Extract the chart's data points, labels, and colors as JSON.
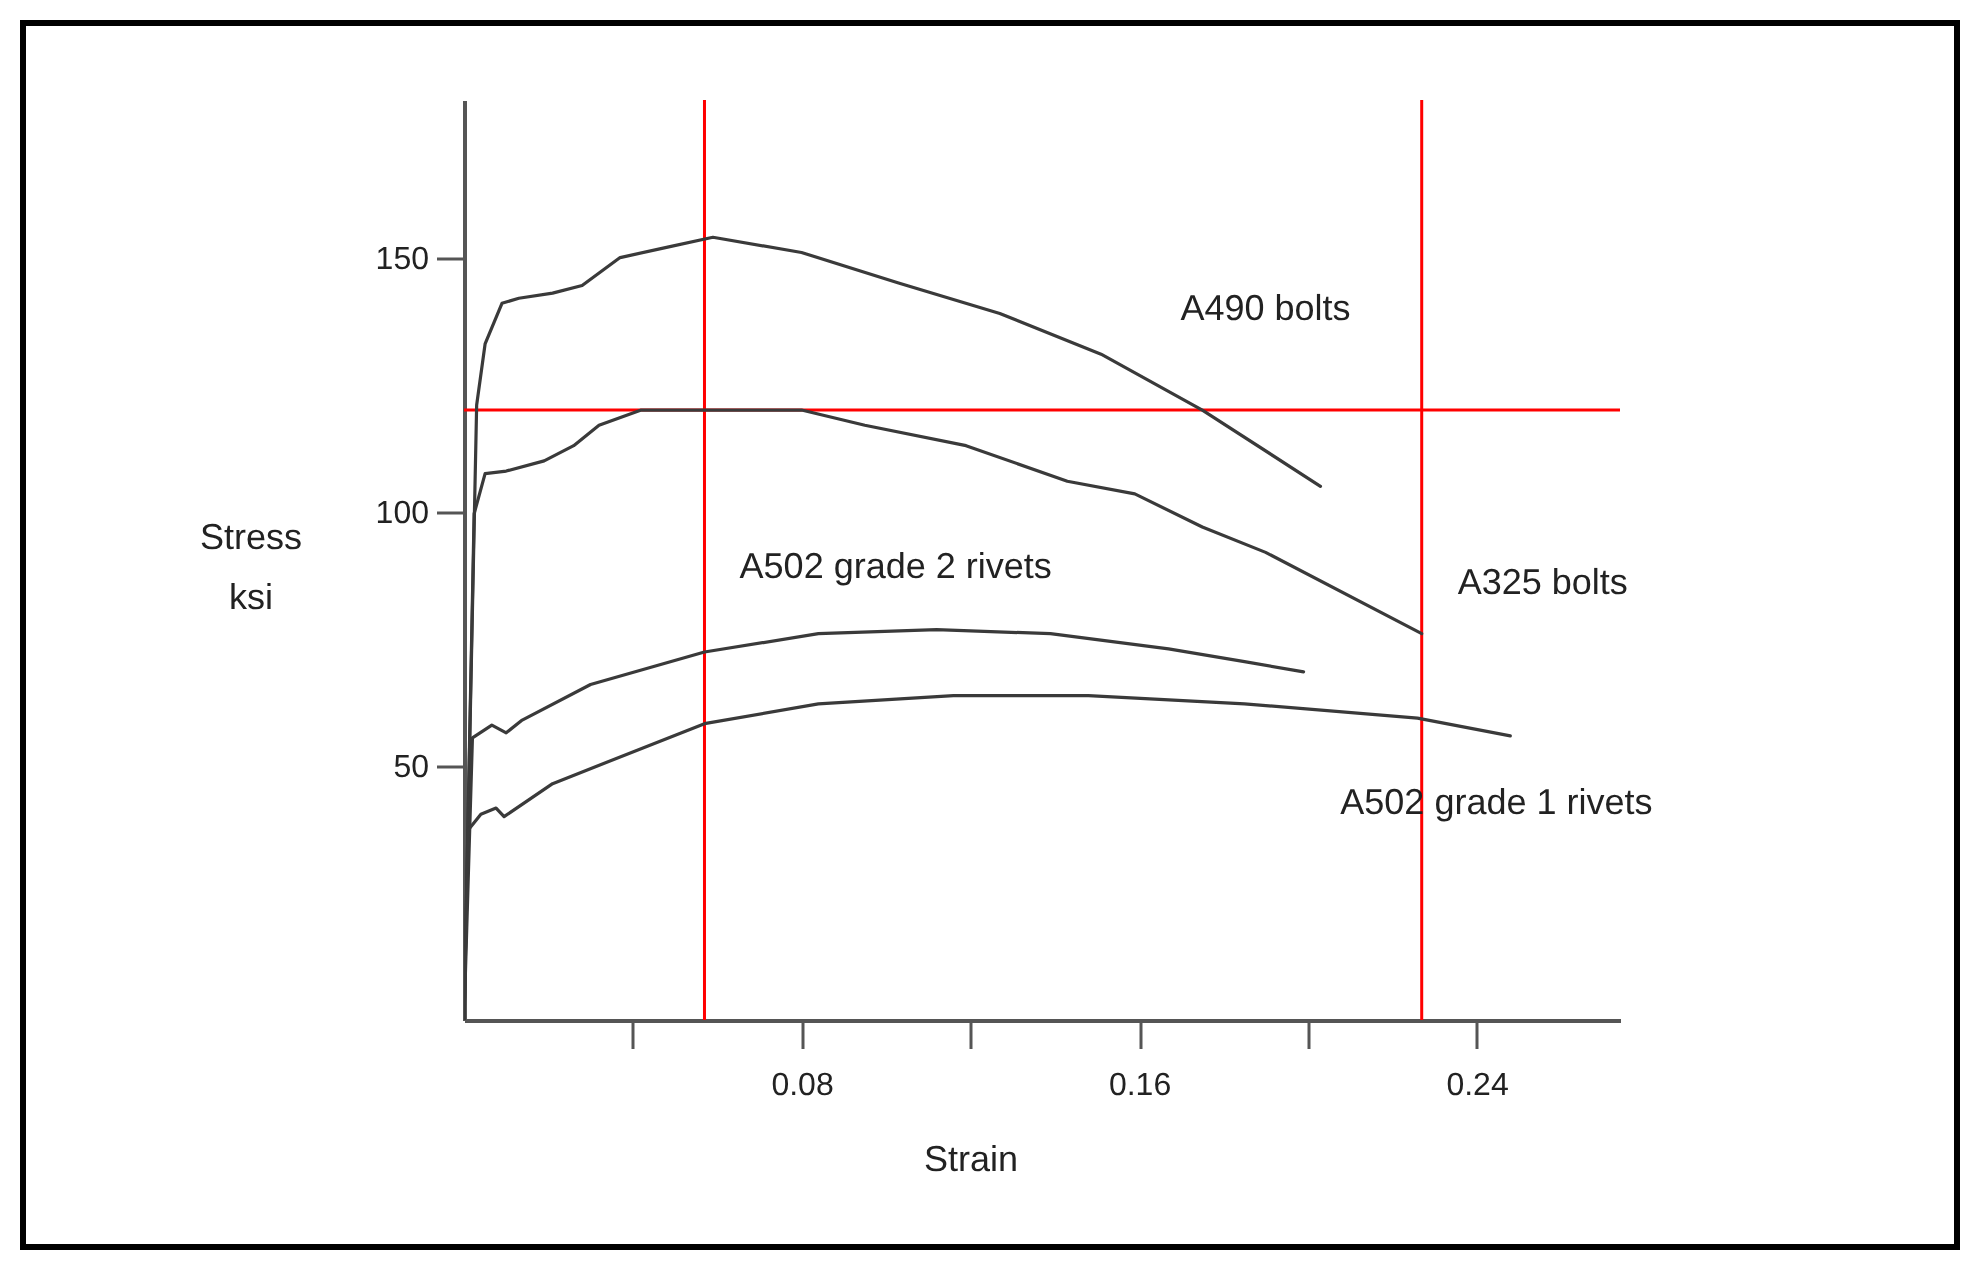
{
  "chart_data": {
    "type": "line",
    "xlabel": "Strain",
    "ylabel": "Stress\nksi",
    "xlim": [
      0,
      0.274
    ],
    "ylim": [
      0,
      181
    ],
    "xticks": [
      {
        "value": 0.04,
        "label": null
      },
      0.08,
      {
        "value": 0.12,
        "label": null
      },
      0.16,
      {
        "value": 0.2,
        "label": null
      },
      0.24
    ],
    "yticks": [
      50,
      100,
      150
    ],
    "grid": false,
    "marker": "none",
    "line_style": "solid",
    "series": [
      {
        "name": "A490 bolts",
        "color": "#3a3a3a",
        "x": [
          0,
          0.003,
          0.005,
          0.009,
          0.013,
          0.021,
          0.028,
          0.037,
          0.048,
          0.059,
          0.08,
          0.103,
          0.127,
          0.151,
          0.175,
          0.203
        ],
        "values": [
          0,
          121,
          133,
          141,
          142,
          143,
          144.5,
          150,
          152,
          154,
          151,
          145,
          139,
          131,
          120,
          105
        ]
      },
      {
        "name": "A325 bolts",
        "color": "#3a3a3a",
        "x": [
          0,
          0.0024,
          0.005,
          0.01,
          0.019,
          0.026,
          0.032,
          0.042,
          0.056,
          0.08,
          0.095,
          0.119,
          0.143,
          0.159,
          0.175,
          0.19,
          0.227
        ],
        "values": [
          0,
          99.6,
          107.5,
          108,
          110,
          113,
          117,
          120,
          120,
          120,
          117,
          113,
          106,
          103.5,
          97,
          92,
          76
        ]
      },
      {
        "name": "A502 grade 2 rivets",
        "color": "#3a3a3a",
        "x": [
          0,
          0.002,
          0.0066,
          0.01,
          0.0138,
          0.03,
          0.057,
          0.084,
          0.112,
          0.139,
          0.167,
          0.185,
          0.199
        ],
        "values": [
          0,
          55.5,
          58,
          56.5,
          59,
          66,
          72.4,
          76,
          76.8,
          76,
          73,
          70.5,
          68.5
        ]
      },
      {
        "name": "A502 grade 1 rivets",
        "color": "#3a3a3a",
        "x": [
          0,
          0.001,
          0.004,
          0.0076,
          0.0095,
          0.021,
          0.057,
          0.084,
          0.116,
          0.148,
          0.185,
          0.226,
          0.248
        ],
        "values": [
          0,
          37.4,
          40.5,
          41.7,
          40,
          46.5,
          58.3,
          62.2,
          63.8,
          63.8,
          62.2,
          59.4,
          55.9
        ]
      }
    ],
    "ref_lines": [
      {
        "axis": "y",
        "value": 120,
        "color": "#ff0000"
      },
      {
        "axis": "x",
        "value": 0.057,
        "color": "#ff0000"
      },
      {
        "axis": "x",
        "value": 0.227,
        "color": "#ff0000"
      }
    ]
  }
}
